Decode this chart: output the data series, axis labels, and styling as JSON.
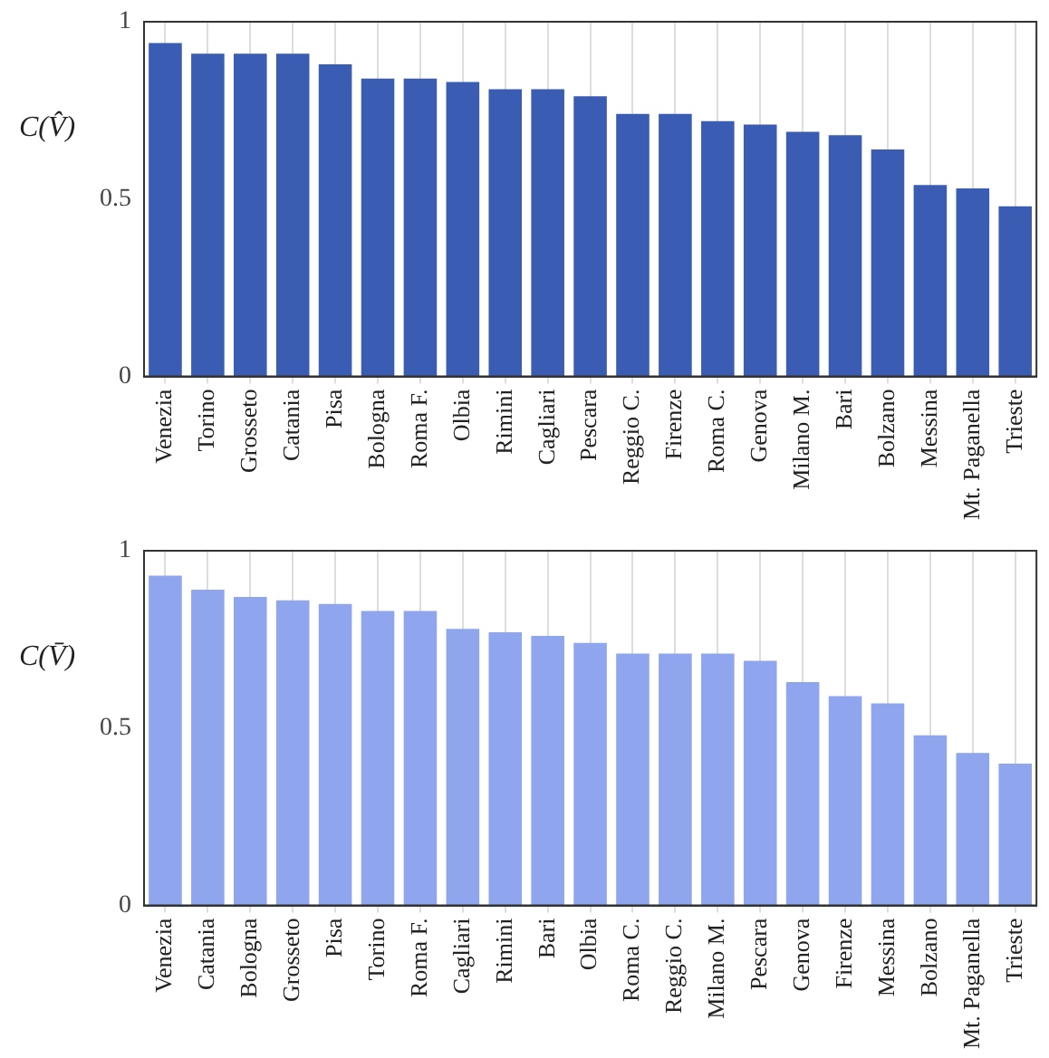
{
  "chart_data": [
    {
      "type": "bar",
      "ylabel": "C(V̂)",
      "categories": [
        "Venezia",
        "Torino",
        "Grosseto",
        "Catania",
        "Pisa",
        "Bologna",
        "Roma F.",
        "Olbia",
        "Rimini",
        "Cagliari",
        "Pescara",
        "Reggio C.",
        "Firenze",
        "Roma C.",
        "Genova",
        "Milano M.",
        "Bari",
        "Bolzano",
        "Messina",
        "Mt. Paganella",
        "Trieste"
      ],
      "values": [
        0.94,
        0.91,
        0.91,
        0.91,
        0.88,
        0.84,
        0.84,
        0.83,
        0.81,
        0.81,
        0.79,
        0.74,
        0.74,
        0.72,
        0.71,
        0.69,
        0.68,
        0.64,
        0.54,
        0.53,
        0.48
      ],
      "color": "#3a5db3",
      "ylim": [
        0,
        1
      ],
      "yticks": [
        0,
        0.5,
        1
      ],
      "grid": "x",
      "legend": false
    },
    {
      "type": "bar",
      "ylabel": "C(V̄)",
      "categories": [
        "Venezia",
        "Catania",
        "Bologna",
        "Grosseto",
        "Pisa",
        "Torino",
        "Roma F.",
        "Cagliari",
        "Rimini",
        "Bari",
        "Olbia",
        "Roma C.",
        "Reggio C.",
        "Milano M.",
        "Pescara",
        "Genova",
        "Firenze",
        "Messina",
        "Bolzano",
        "Mt. Paganella",
        "Trieste"
      ],
      "values": [
        0.93,
        0.89,
        0.87,
        0.86,
        0.85,
        0.83,
        0.83,
        0.78,
        0.77,
        0.76,
        0.74,
        0.71,
        0.71,
        0.71,
        0.69,
        0.63,
        0.59,
        0.57,
        0.48,
        0.43,
        0.4
      ],
      "color": "#8fa6ef",
      "ylim": [
        0,
        1
      ],
      "yticks": [
        0,
        0.5,
        1
      ],
      "grid": "x",
      "legend": false
    }
  ]
}
